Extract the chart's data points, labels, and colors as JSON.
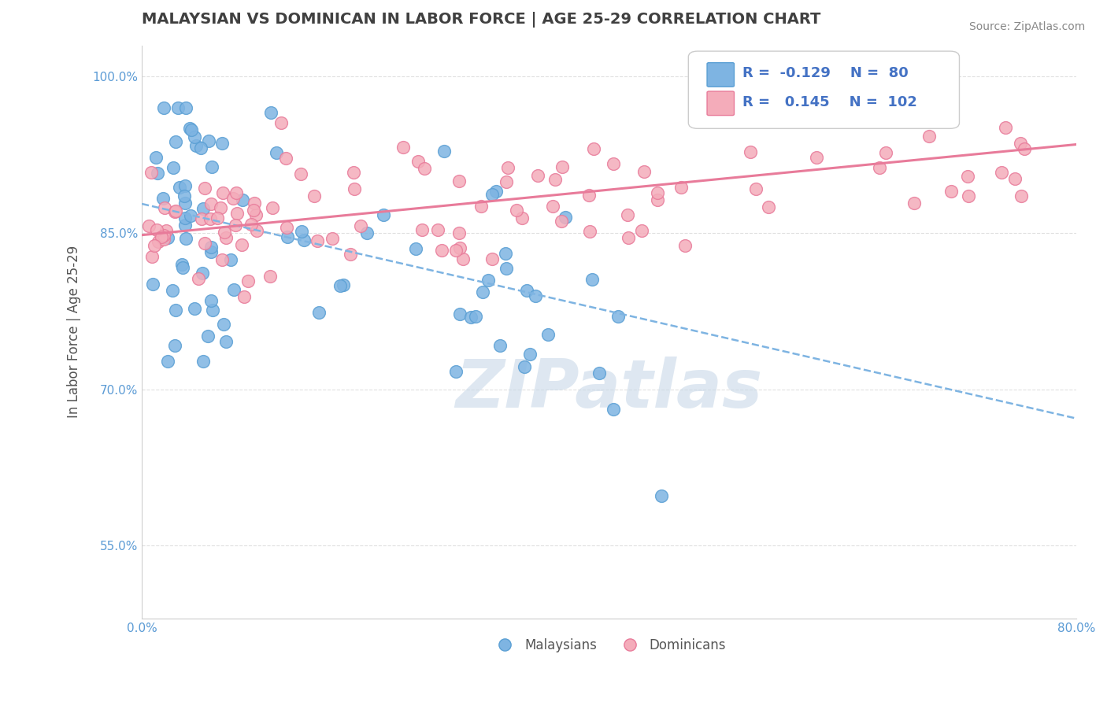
{
  "title": "MALAYSIAN VS DOMINICAN IN LABOR FORCE | AGE 25-29 CORRELATION CHART",
  "source_text": "Source: ZipAtlas.com",
  "ylabel": "In Labor Force | Age 25-29",
  "x_min": 0.0,
  "x_max": 0.8,
  "y_min": 0.48,
  "y_max": 1.03,
  "y_ticks": [
    1.0,
    0.85,
    0.7,
    0.55
  ],
  "y_tick_labels": [
    "100.0%",
    "85.0%",
    "70.0%",
    "55.0%"
  ],
  "legend_R1": "-0.129",
  "legend_N1": "80",
  "legend_R2": "0.145",
  "legend_N2": "102",
  "legend_label1": "Malaysians",
  "legend_label2": "Dominicans",
  "blue_color": "#7EB4E2",
  "blue_edge": "#5A9FD4",
  "pink_color": "#F4ACBA",
  "pink_edge": "#E87B9A",
  "pink_line_color": "#E87B9A",
  "watermark": "ZIPatlas",
  "watermark_color": "#C8D8E8",
  "title_color": "#404040",
  "label_color": "#5B9BD5",
  "grid_color": "#E0E0E0",
  "r_color": "#4472C4",
  "blue_trend_x": [
    0.0,
    0.8
  ],
  "blue_trend_y": [
    0.878,
    0.672
  ],
  "pink_trend_x": [
    0.0,
    0.8
  ],
  "pink_trend_y": [
    0.848,
    0.935
  ]
}
